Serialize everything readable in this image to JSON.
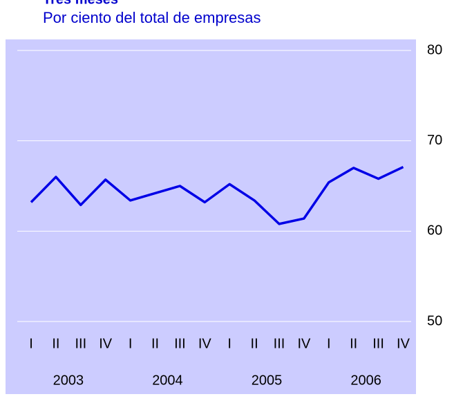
{
  "chart_data": {
    "type": "line",
    "title": "Tres meses",
    "subtitle": "Por ciento del total de empresas",
    "categories": [
      "I",
      "II",
      "III",
      "IV",
      "I",
      "II",
      "III",
      "IV",
      "I",
      "II",
      "III",
      "IV",
      "I",
      "II",
      "III",
      "IV"
    ],
    "groups": [
      "2003",
      "2004",
      "2005",
      "2006"
    ],
    "series": [
      {
        "color": "#0000e6",
        "values": [
          63.2,
          66.0,
          62.9,
          65.7,
          63.4,
          64.2,
          65.0,
          63.2,
          65.2,
          63.4,
          60.8,
          61.4,
          65.4,
          67.0,
          65.8,
          67.1
        ]
      }
    ],
    "ylim": [
      50,
      80
    ],
    "yticks": [
      50,
      60,
      70,
      80
    ],
    "grid": true,
    "background": "#ccccff"
  }
}
